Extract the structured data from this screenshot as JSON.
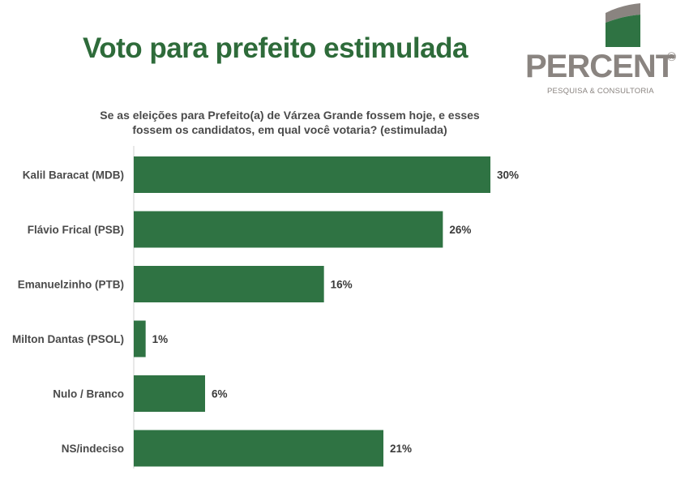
{
  "header": {
    "title": "Voto para prefeito estimulada",
    "subtitle": "Se as eleições para Prefeito(a) de Várzea Grande fossem hoje, e esses fossem os candidatos, em qual você votaria? (estimulada)"
  },
  "logo": {
    "word": "PERCENT",
    "registered": "®",
    "tagline": "PESQUISA & CONSULTORIA"
  },
  "colors": {
    "bar": "#2f7343",
    "title": "#2e6b3a",
    "logo_gray": "#8a8480"
  },
  "chart_data": {
    "type": "bar",
    "orientation": "horizontal",
    "categories": [
      "Kalil Baracat (MDB)",
      "Flávio Frical (PSB)",
      "Emanuelzinho (PTB)",
      "Milton Dantas (PSOL)",
      "Nulo / Branco",
      "NS/indeciso"
    ],
    "values": [
      30,
      26,
      16,
      1,
      6,
      21
    ],
    "value_labels": [
      "30%",
      "26%",
      "16%",
      "1%",
      "6%",
      "21%"
    ],
    "xlim": [
      0,
      30
    ],
    "grid": false
  }
}
